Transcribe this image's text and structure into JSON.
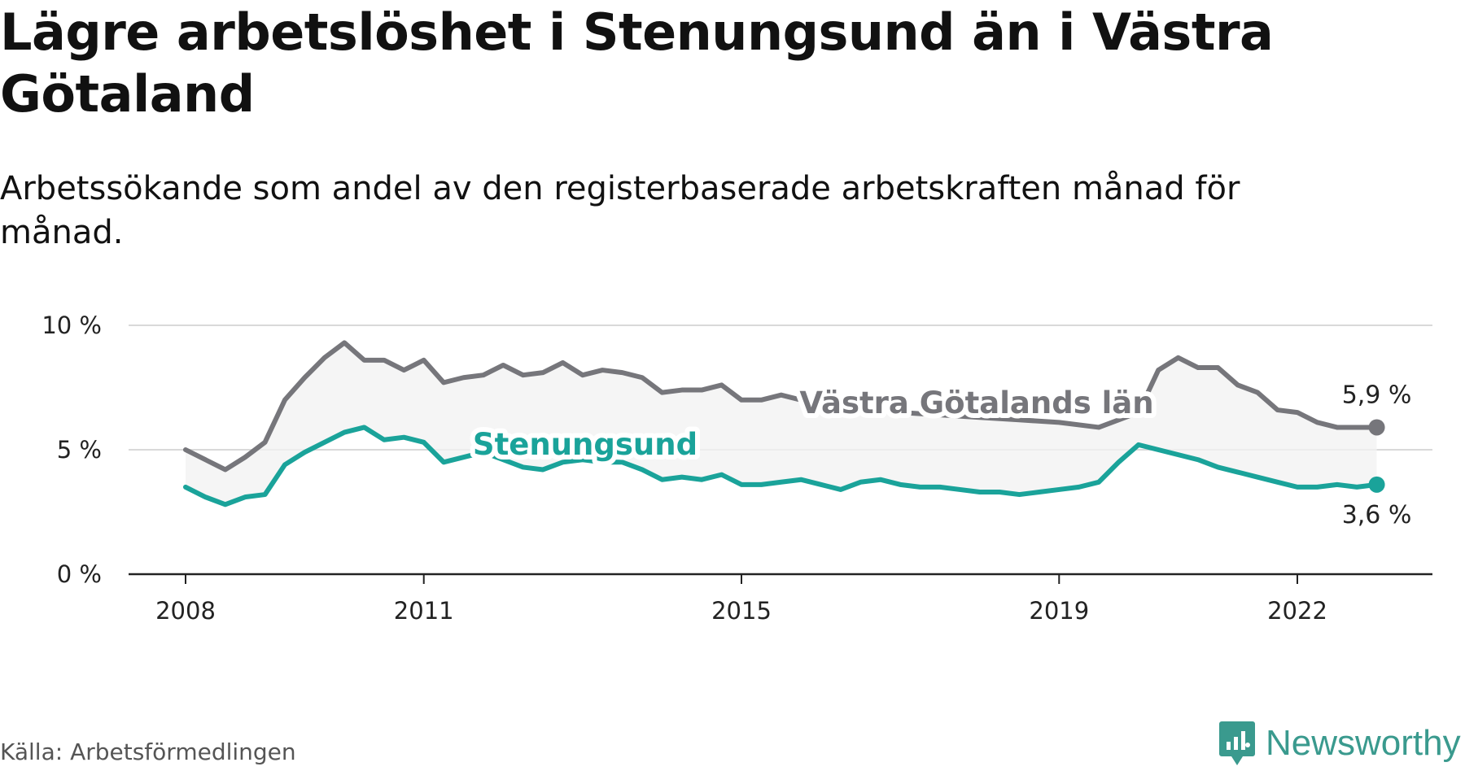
{
  "header": {
    "title": "Lägre arbetslöshet i Stenungsund än i Västra Götaland",
    "subtitle": "Arbetssökande som andel av den registerbaserade arbetskraften månad för månad."
  },
  "footer": {
    "source": "Källa: Arbetsförmedlingen",
    "brand": "Newsworthy"
  },
  "colors": {
    "region": "#76767b",
    "local": "#1aa39a",
    "band": "#f2f2f2",
    "grid": "#d9d9d9",
    "axis": "#222222",
    "brand": "#3a9a8e"
  },
  "chart_data": {
    "type": "line",
    "title": "Lägre arbetslöshet i Stenungsund än i Västra Götaland",
    "ylabel": "",
    "xlabel": "",
    "ylim": [
      0,
      10
    ],
    "yticks": [
      0,
      5,
      10
    ],
    "ytick_labels": [
      "0 %",
      "5 %",
      "10 %"
    ],
    "xlim": [
      2008.0,
      2023.0
    ],
    "xticks": [
      2008,
      2011,
      2015,
      2019,
      2022
    ],
    "xtick_labels": [
      "2008",
      "2011",
      "2015",
      "2019",
      "2022"
    ],
    "series": [
      {
        "name": "Västra Götalands län",
        "end_label": "5,9 %",
        "x": [
          2008.0,
          2008.25,
          2008.5,
          2008.75,
          2009.0,
          2009.25,
          2009.5,
          2009.75,
          2010.0,
          2010.25,
          2010.5,
          2010.75,
          2011.0,
          2011.25,
          2011.5,
          2011.75,
          2012.0,
          2012.25,
          2012.5,
          2012.75,
          2013.0,
          2013.25,
          2013.5,
          2013.75,
          2014.0,
          2014.25,
          2014.5,
          2014.75,
          2015.0,
          2015.25,
          2015.5,
          2015.75,
          2016.0,
          2016.5,
          2017.0,
          2017.5,
          2018.0,
          2018.5,
          2019.0,
          2019.5,
          2020.0,
          2020.25,
          2020.5,
          2020.75,
          2021.0,
          2021.25,
          2021.5,
          2021.75,
          2022.0,
          2022.25,
          2022.5,
          2022.75,
          2023.0
        ],
        "values": [
          5.0,
          4.6,
          4.2,
          4.7,
          5.3,
          7.0,
          7.9,
          8.7,
          9.3,
          8.6,
          8.6,
          8.2,
          8.6,
          7.7,
          7.9,
          8.0,
          8.4,
          8.0,
          8.1,
          8.5,
          8.0,
          8.2,
          8.1,
          7.9,
          7.3,
          7.4,
          7.4,
          7.6,
          7.0,
          7.0,
          7.2,
          7.0,
          6.8,
          6.7,
          6.5,
          6.4,
          6.3,
          6.2,
          6.1,
          5.9,
          6.5,
          8.2,
          8.7,
          8.3,
          8.3,
          7.6,
          7.3,
          6.6,
          6.5,
          6.1,
          5.9,
          5.9,
          5.9
        ]
      },
      {
        "name": "Stenungsund",
        "end_label": "3,6 %",
        "x": [
          2008.0,
          2008.25,
          2008.5,
          2008.75,
          2009.0,
          2009.25,
          2009.5,
          2009.75,
          2010.0,
          2010.25,
          2010.5,
          2010.75,
          2011.0,
          2011.25,
          2011.5,
          2011.75,
          2012.0,
          2012.25,
          2012.5,
          2012.75,
          2013.0,
          2013.25,
          2013.5,
          2013.75,
          2014.0,
          2014.25,
          2014.5,
          2014.75,
          2015.0,
          2015.25,
          2015.5,
          2015.75,
          2016.0,
          2016.25,
          2016.5,
          2016.75,
          2017.0,
          2017.25,
          2017.5,
          2017.75,
          2018.0,
          2018.25,
          2018.5,
          2018.75,
          2019.0,
          2019.25,
          2019.5,
          2019.75,
          2020.0,
          2020.25,
          2020.5,
          2020.75,
          2021.0,
          2021.25,
          2021.5,
          2021.75,
          2022.0,
          2022.25,
          2022.5,
          2022.75,
          2023.0
        ],
        "values": [
          3.5,
          3.1,
          2.8,
          3.1,
          3.2,
          4.4,
          4.9,
          5.3,
          5.7,
          5.9,
          5.4,
          5.5,
          5.3,
          4.5,
          4.7,
          4.9,
          4.6,
          4.3,
          4.2,
          4.5,
          4.6,
          4.5,
          4.5,
          4.2,
          3.8,
          3.9,
          3.8,
          4.0,
          3.6,
          3.6,
          3.7,
          3.8,
          3.6,
          3.4,
          3.7,
          3.8,
          3.6,
          3.5,
          3.5,
          3.4,
          3.3,
          3.3,
          3.2,
          3.3,
          3.4,
          3.5,
          3.7,
          4.5,
          5.2,
          5.0,
          4.8,
          4.6,
          4.3,
          4.1,
          3.9,
          3.7,
          3.5,
          3.5,
          3.6,
          3.5,
          3.6
        ]
      }
    ]
  }
}
